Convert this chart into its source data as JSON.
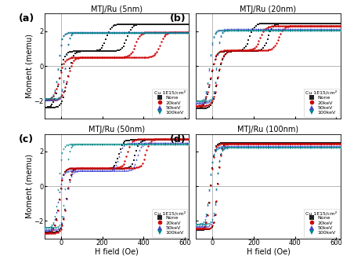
{
  "titles": [
    "MTJ/Ru (5nm)",
    "MTJ/Ru (20nm)",
    "MTJ/Ru (50nm)",
    "MTJ/Ru (100nm)"
  ],
  "panel_labels": [
    "(a)",
    "(b)",
    "(c)",
    "(d)"
  ],
  "xlabel": "H field (Oe)",
  "ylabel": "Moment (memu)",
  "xlim": [
    -80,
    620
  ],
  "ylim": [
    -3,
    3
  ],
  "xticks": [
    0,
    200,
    400,
    600
  ],
  "yticks": [
    -2,
    0,
    2
  ],
  "legend_title": "Cu 1E15/cm²",
  "legend_entries": [
    "None",
    "20keV",
    "50keV",
    "100keV"
  ],
  "colors": [
    "#222222",
    "#cc0000",
    "#4444cc",
    "#008888"
  ],
  "markers": [
    "s",
    "o",
    "^",
    "v"
  ],
  "background": "#ffffff",
  "panels": {
    "a": {
      "none": {
        "switch1_up": 30,
        "switch1_dn": -10,
        "switch2_up": 320,
        "switch2_dn": 220,
        "sat": 2.4,
        "plateau": 0.85,
        "steep": 8
      },
      "20keV": {
        "switch1_up": 30,
        "switch1_dn": -10,
        "switch2_up": 480,
        "switch2_dn": 360,
        "sat": 1.95,
        "plateau": 0.5,
        "steep": 8
      },
      "50keV": {
        "switch1_up": 20,
        "switch1_dn": -15,
        "switch2_up": 30,
        "switch2_dn": 20,
        "sat": 1.95,
        "plateau": 1.9,
        "steep": 12
      },
      "100keV": {
        "switch1_up": 20,
        "switch1_dn": -15,
        "switch2_up": 30,
        "switch2_dn": 20,
        "sat": 1.9,
        "plateau": 1.85,
        "steep": 12
      }
    },
    "b": {
      "none": {
        "switch1_up": 25,
        "switch1_dn": -10,
        "switch2_up": 270,
        "switch2_dn": 180,
        "sat": 2.45,
        "plateau": 0.85,
        "steep": 8
      },
      "20keV": {
        "switch1_up": 25,
        "switch1_dn": -10,
        "switch2_up": 320,
        "switch2_dn": 230,
        "sat": 2.3,
        "plateau": 0.9,
        "steep": 8
      },
      "50keV": {
        "switch1_up": 20,
        "switch1_dn": -15,
        "switch2_up": 35,
        "switch2_dn": 20,
        "sat": 2.1,
        "plateau": 2.0,
        "steep": 12
      },
      "100keV": {
        "switch1_up": 20,
        "switch1_dn": -15,
        "switch2_up": 30,
        "switch2_dn": 18,
        "sat": 2.05,
        "plateau": 2.0,
        "steep": 12
      }
    },
    "c": {
      "none": {
        "switch1_up": 25,
        "switch1_dn": -10,
        "switch2_up": 360,
        "switch2_dn": 280,
        "sat": 2.65,
        "plateau": 1.0,
        "steep": 10
      },
      "20keV": {
        "switch1_up": 25,
        "switch1_dn": -10,
        "switch2_up": 410,
        "switch2_dn": 320,
        "sat": 2.7,
        "plateau": 1.05,
        "steep": 10
      },
      "50keV": {
        "switch1_up": 25,
        "switch1_dn": -15,
        "switch2_up": 370,
        "switch2_dn": 280,
        "sat": 2.5,
        "plateau": 0.9,
        "steep": 10
      },
      "100keV": {
        "switch1_up": 20,
        "switch1_dn": -15,
        "switch2_up": 35,
        "switch2_dn": 22,
        "sat": 2.4,
        "plateau": 2.3,
        "steep": 12
      }
    },
    "d": {
      "none": {
        "switch1_up": 25,
        "switch1_dn": -10,
        "switch2_up": 35,
        "switch2_dn": 22,
        "sat": 2.5,
        "plateau": 2.4,
        "steep": 12
      },
      "20keV": {
        "switch1_up": 25,
        "switch1_dn": -10,
        "switch2_up": 35,
        "switch2_dn": 22,
        "sat": 2.45,
        "plateau": 2.35,
        "steep": 12
      },
      "50keV": {
        "switch1_up": 20,
        "switch1_dn": -15,
        "switch2_up": 30,
        "switch2_dn": 20,
        "sat": 2.3,
        "plateau": 2.2,
        "steep": 12
      },
      "100keV": {
        "switch1_up": 20,
        "switch1_dn": -15,
        "switch2_up": 30,
        "switch2_dn": 18,
        "sat": 2.2,
        "plateau": 2.1,
        "steep": 12
      }
    }
  }
}
